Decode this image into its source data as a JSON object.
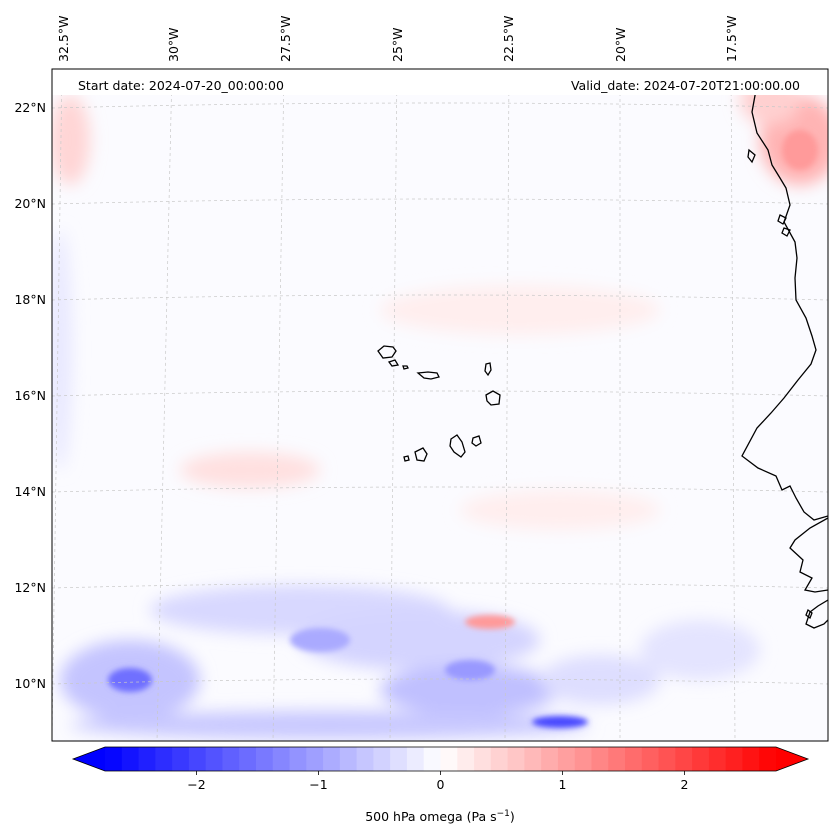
{
  "info": {
    "start_date": "Start date: 2024-07-20_00:00:00",
    "valid_date": "Valid_date: 2024-07-20T21:00:00.00"
  },
  "longitude_labels": [
    "32.5°W",
    "30°W",
    "27.5°W",
    "25°W",
    "22.5°W",
    "20°W",
    "17.5°W"
  ],
  "latitude_labels": [
    "22°N",
    "20°N",
    "18°N",
    "16°N",
    "14°N",
    "12°N",
    "10°N"
  ],
  "colorbar": {
    "label": "500 hPa omega (Pa s",
    "label_exponent": "−1",
    "label_close": ")",
    "ticks": [
      {
        "value": -2,
        "text": "−2"
      },
      {
        "value": -1,
        "text": "−1"
      },
      {
        "value": 0,
        "text": "0"
      },
      {
        "value": 1,
        "text": "1"
      },
      {
        "value": 2,
        "text": "2"
      }
    ],
    "range": [
      -2.75,
      2.75
    ],
    "levels": 40,
    "low_color": "#0000ff",
    "mid_color": "#ffffff",
    "high_color": "#ff0000"
  },
  "colors": {
    "coastline": "#000000",
    "gridline": "#c8c8c8",
    "info_band": "#ffffff"
  }
}
